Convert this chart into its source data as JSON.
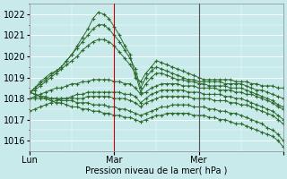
{
  "title": "Pression niveau de la mer( hPa )",
  "bg_color": "#c8eaea",
  "grid_color": "#ffffff",
  "line_color": "#2d6b2d",
  "vline_color_dark": "#555555",
  "vline_color_red": "#cc0000",
  "ylim": [
    1015.5,
    1022.5
  ],
  "yticks": [
    1016,
    1017,
    1018,
    1019,
    1020,
    1021,
    1022
  ],
  "xlabel_fontsize": 7,
  "ylabel_fontsize": 7,
  "series": [
    [
      1018.3,
      1018.5,
      1018.8,
      1019.0,
      1019.2,
      1019.3,
      1019.5,
      1019.8,
      1020.1,
      1020.5,
      1020.9,
      1021.3,
      1021.8,
      1022.1,
      1022.0,
      1021.8,
      1021.4,
      1021.0,
      1020.5,
      1020.1,
      1019.0,
      1018.8,
      1019.2,
      1019.5,
      1019.8,
      1019.7,
      1019.6,
      1019.5,
      1019.4,
      1019.3,
      1019.2,
      1019.1,
      1019.0,
      1018.9,
      1018.9,
      1018.9,
      1018.9,
      1018.9,
      1018.9,
      1018.8,
      1018.8,
      1018.8,
      1018.7,
      1018.7,
      1018.6,
      1018.6,
      1018.6,
      1018.5,
      1018.5
    ],
    [
      1018.3,
      1018.5,
      1018.7,
      1018.9,
      1019.1,
      1019.3,
      1019.5,
      1019.8,
      1020.1,
      1020.4,
      1020.7,
      1021.0,
      1021.3,
      1021.5,
      1021.5,
      1021.3,
      1021.0,
      1020.7,
      1020.3,
      1019.9,
      1019.4,
      1018.5,
      1019.0,
      1019.3,
      1019.5,
      1019.4,
      1019.3,
      1019.2,
      1019.1,
      1019.0,
      1018.9,
      1018.9,
      1018.8,
      1018.8,
      1018.8,
      1018.8,
      1018.8,
      1018.7,
      1018.7,
      1018.7,
      1018.7,
      1018.6,
      1018.5,
      1018.4,
      1018.4,
      1018.3,
      1018.2,
      1018.1,
      1018.0
    ],
    [
      1018.3,
      1018.4,
      1018.6,
      1018.8,
      1019.0,
      1019.2,
      1019.4,
      1019.6,
      1019.8,
      1020.0,
      1020.3,
      1020.5,
      1020.7,
      1020.8,
      1020.8,
      1020.7,
      1020.5,
      1020.2,
      1019.9,
      1019.6,
      1019.2,
      1018.3,
      1018.7,
      1019.0,
      1019.2,
      1019.2,
      1019.1,
      1019.0,
      1018.9,
      1018.9,
      1018.8,
      1018.8,
      1018.7,
      1018.7,
      1018.6,
      1018.6,
      1018.6,
      1018.6,
      1018.5,
      1018.5,
      1018.5,
      1018.4,
      1018.3,
      1018.2,
      1018.1,
      1018.0,
      1017.9,
      1017.7,
      1017.6
    ],
    [
      1018.0,
      1018.1,
      1018.2,
      1018.3,
      1018.4,
      1018.5,
      1018.5,
      1018.6,
      1018.7,
      1018.7,
      1018.8,
      1018.8,
      1018.9,
      1018.9,
      1018.9,
      1018.9,
      1018.8,
      1018.8,
      1018.7,
      1018.7,
      1018.5,
      1018.2,
      1018.3,
      1018.5,
      1018.6,
      1018.7,
      1018.7,
      1018.7,
      1018.7,
      1018.6,
      1018.6,
      1018.6,
      1018.5,
      1018.5,
      1018.5,
      1018.5,
      1018.4,
      1018.4,
      1018.4,
      1018.3,
      1018.3,
      1018.2,
      1018.2,
      1018.1,
      1018.0,
      1017.9,
      1017.8,
      1017.6,
      1017.5
    ],
    [
      1017.4,
      1017.5,
      1017.6,
      1017.7,
      1017.8,
      1017.9,
      1018.0,
      1018.0,
      1018.1,
      1018.2,
      1018.2,
      1018.3,
      1018.3,
      1018.3,
      1018.3,
      1018.3,
      1018.3,
      1018.3,
      1018.2,
      1018.2,
      1018.1,
      1017.8,
      1018.0,
      1018.2,
      1018.3,
      1018.4,
      1018.4,
      1018.4,
      1018.4,
      1018.4,
      1018.3,
      1018.3,
      1018.3,
      1018.2,
      1018.2,
      1018.2,
      1018.2,
      1018.1,
      1018.1,
      1018.0,
      1018.0,
      1017.9,
      1017.8,
      1017.7,
      1017.6,
      1017.5,
      1017.4,
      1017.2,
      1017.0
    ],
    [
      1018.0,
      1018.0,
      1018.0,
      1018.0,
      1018.0,
      1018.0,
      1018.0,
      1018.0,
      1018.0,
      1018.0,
      1018.0,
      1018.1,
      1018.1,
      1018.1,
      1018.1,
      1018.1,
      1018.0,
      1018.0,
      1018.0,
      1017.9,
      1017.8,
      1017.6,
      1017.8,
      1017.9,
      1018.0,
      1018.1,
      1018.1,
      1018.1,
      1018.1,
      1018.1,
      1018.1,
      1018.0,
      1018.0,
      1018.0,
      1018.0,
      1017.9,
      1017.9,
      1017.9,
      1017.8,
      1017.8,
      1017.7,
      1017.7,
      1017.6,
      1017.5,
      1017.4,
      1017.3,
      1017.2,
      1017.0,
      1016.8
    ],
    [
      1018.3,
      1018.2,
      1018.1,
      1018.1,
      1018.0,
      1018.0,
      1017.9,
      1017.9,
      1017.9,
      1017.8,
      1017.8,
      1017.8,
      1017.7,
      1017.7,
      1017.7,
      1017.6,
      1017.6,
      1017.5,
      1017.5,
      1017.4,
      1017.3,
      1017.2,
      1017.3,
      1017.4,
      1017.5,
      1017.6,
      1017.6,
      1017.7,
      1017.7,
      1017.7,
      1017.7,
      1017.6,
      1017.6,
      1017.6,
      1017.5,
      1017.5,
      1017.4,
      1017.4,
      1017.3,
      1017.3,
      1017.2,
      1017.1,
      1017.0,
      1016.9,
      1016.8,
      1016.6,
      1016.5,
      1016.3,
      1016.0
    ],
    [
      1018.3,
      1018.2,
      1018.1,
      1018.0,
      1017.9,
      1017.8,
      1017.8,
      1017.7,
      1017.6,
      1017.6,
      1017.5,
      1017.5,
      1017.4,
      1017.4,
      1017.3,
      1017.3,
      1017.2,
      1017.2,
      1017.1,
      1017.1,
      1017.0,
      1016.9,
      1017.0,
      1017.1,
      1017.2,
      1017.2,
      1017.3,
      1017.3,
      1017.3,
      1017.3,
      1017.3,
      1017.2,
      1017.2,
      1017.2,
      1017.1,
      1017.1,
      1017.0,
      1017.0,
      1016.9,
      1016.8,
      1016.8,
      1016.7,
      1016.6,
      1016.5,
      1016.4,
      1016.3,
      1016.2,
      1016.0,
      1015.7
    ]
  ],
  "n_points": 49,
  "day_ticks": [
    0,
    16,
    32,
    48
  ],
  "day_labels": [
    "Lun",
    "Mar",
    "Mer",
    ""
  ],
  "vline_dark": 32,
  "vline_red": 16
}
